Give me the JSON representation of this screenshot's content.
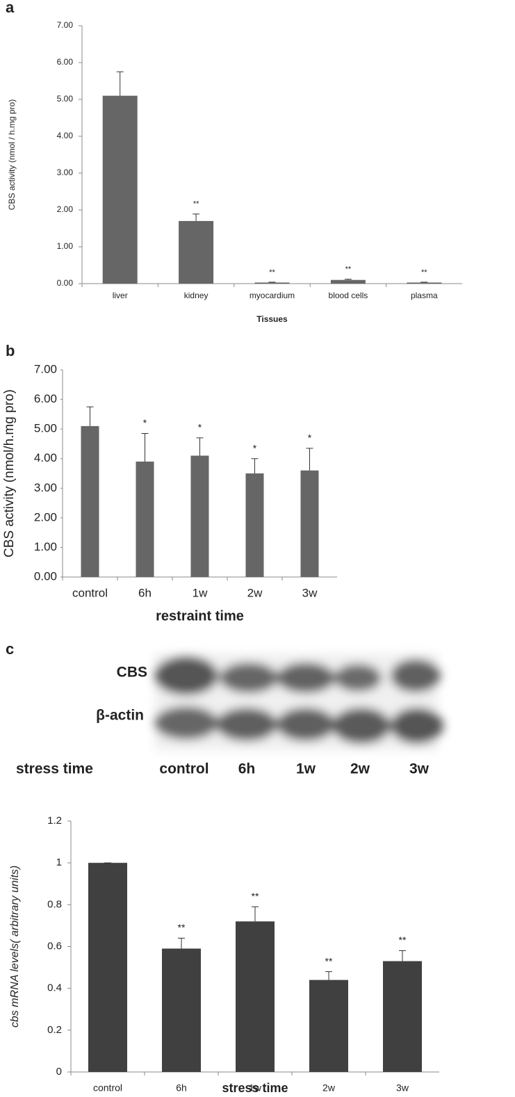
{
  "chart_data": [
    {
      "type": "bar",
      "label": "a",
      "y_label": "CBS activity (nmol / h.mg pro)",
      "x_label": "Tissues",
      "categories": [
        "liver",
        "kidney",
        "myocardium",
        "blood cells",
        "plasma"
      ],
      "values": [
        5.1,
        1.7,
        0.03,
        0.1,
        0.03
      ],
      "errors": [
        0.65,
        0.19,
        0.01,
        0.02,
        0.01
      ],
      "annotations": [
        null,
        "**",
        "**",
        "**",
        "**"
      ],
      "color": "#666666",
      "ylim": [
        0,
        7
      ],
      "yticks": [
        {
          "value": 0,
          "label": "0.00"
        },
        {
          "value": 1,
          "label": "1.00"
        },
        {
          "value": 2,
          "label": "2.00"
        },
        {
          "value": 3,
          "label": "3.00"
        },
        {
          "value": 4,
          "label": "4.00"
        },
        {
          "value": 5,
          "label": "5.00"
        },
        {
          "value": 6,
          "label": "6.00"
        },
        {
          "value": 7,
          "label": "7.00"
        }
      ]
    },
    {
      "type": "bar",
      "label": "b",
      "y_label": "CBS activity (nmol/h.mg pro)",
      "x_label": "restraint time",
      "categories": [
        "control",
        "6h",
        "1w",
        "2w",
        "3w"
      ],
      "values": [
        5.1,
        3.9,
        4.1,
        3.5,
        3.6
      ],
      "errors": [
        0.65,
        0.95,
        0.6,
        0.5,
        0.75
      ],
      "annotations": [
        null,
        "*",
        "*",
        "*",
        "*"
      ],
      "color": "#666666",
      "ylim": [
        0,
        7
      ],
      "yticks": [
        {
          "value": 0,
          "label": "0.00"
        },
        {
          "value": 1,
          "label": "1.00"
        },
        {
          "value": 2,
          "label": "2.00"
        },
        {
          "value": 3,
          "label": "3.00"
        },
        {
          "value": 4,
          "label": "4.00"
        },
        {
          "value": 5,
          "label": "5.00"
        },
        {
          "value": 6,
          "label": "6.00"
        },
        {
          "value": 7,
          "label": "7.00"
        }
      ]
    },
    {
      "type": "bar",
      "y_label": "cbs mRNA levels( arbitrary units)",
      "x_label": "stress time",
      "categories": [
        "control",
        "6h",
        "1w",
        "2w",
        "3w"
      ],
      "values": [
        1,
        0.59,
        0.72,
        0.44,
        0.53
      ],
      "errors": [
        0,
        0.05,
        0.07,
        0.04,
        0.05
      ],
      "annotations": [
        null,
        "**",
        "**",
        "**",
        "**"
      ],
      "color": "#404040",
      "ylim": [
        0,
        1.2
      ],
      "yticks": [
        0,
        0.2,
        0.4,
        0.6,
        0.8,
        1,
        1.2
      ]
    }
  ],
  "blot": {
    "label": "c",
    "rows": [
      "CBS",
      "β-actin"
    ],
    "axis_label": "stress time",
    "lanes": [
      "control",
      "6h",
      "1w",
      "2w",
      "3w"
    ]
  }
}
